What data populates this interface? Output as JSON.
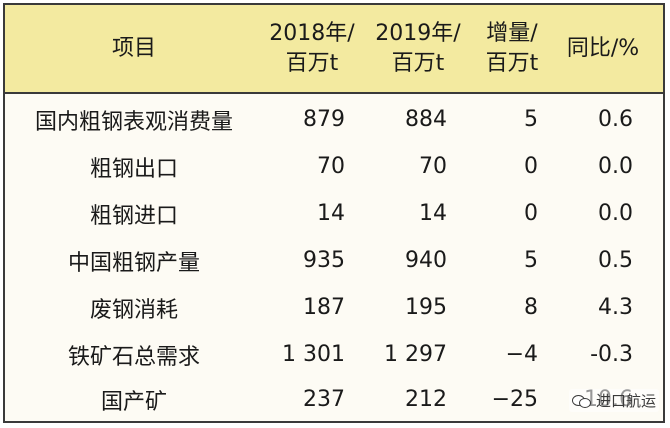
{
  "table": {
    "headers": {
      "item": "项目",
      "y2018": "2018年/\n百万t",
      "y2019": "2019年/\n百万t",
      "increase": "增量/\n百万t",
      "yoy": "同比/%"
    },
    "rows": [
      {
        "item": "国内粗钢表观消费量",
        "y2018": "879",
        "y2019": "884",
        "increase": "5",
        "yoy": "0.6"
      },
      {
        "item": "粗钢出口",
        "y2018": "70",
        "y2019": "70",
        "increase": "0",
        "yoy": "0.0"
      },
      {
        "item": "粗钢进口",
        "y2018": "14",
        "y2019": "14",
        "increase": "0",
        "yoy": "0.0"
      },
      {
        "item": "中国粗钢产量",
        "y2018": "935",
        "y2019": "940",
        "increase": "5",
        "yoy": "0.5"
      },
      {
        "item": "废钢消耗",
        "y2018": "187",
        "y2019": "195",
        "increase": "8",
        "yoy": "4.3"
      },
      {
        "item": "铁矿石总需求",
        "y2018": "1 301",
        "y2019": "1 297",
        "increase": "−4",
        "yoy": "-0.3"
      },
      {
        "item": "国产矿",
        "y2018": "237",
        "y2019": "212",
        "increase": "−25",
        "yoy": "-10.6"
      }
    ]
  },
  "watermark": {
    "icon": "wechat-icon",
    "text": "进口航运"
  }
}
